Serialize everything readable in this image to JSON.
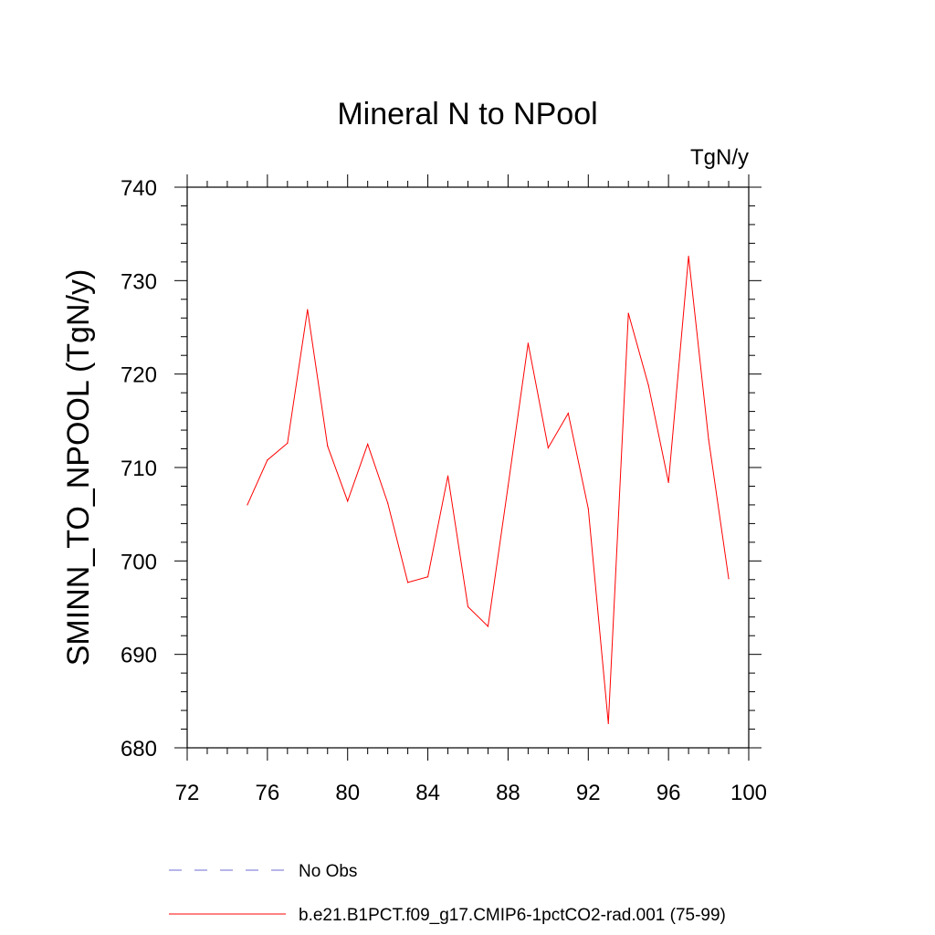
{
  "chart_data": {
    "type": "line",
    "title": "Mineral N to NPool",
    "units_label": "TgN/y",
    "ylabel": "SMINN_TO_NPOOL  (TgN/y)",
    "xlabel": "",
    "xlim": [
      72,
      100
    ],
    "ylim": [
      680,
      740
    ],
    "xticks": [
      "72",
      "76",
      "80",
      "84",
      "88",
      "92",
      "96",
      "100"
    ],
    "yticks": [
      "680",
      "690",
      "700",
      "710",
      "720",
      "730",
      "740"
    ],
    "grid": false,
    "legend_position": "bottom",
    "series": [
      {
        "name": "No Obs",
        "color": "#6b6bd6",
        "dash": "dashed",
        "x": [],
        "values": []
      },
      {
        "name": "b.e21.B1PCT.f09_g17.CMIP6-1pctCO2-rad.001 (75-99)",
        "color": "#ff0000",
        "dash": "solid",
        "x": [
          75,
          76,
          77,
          78,
          79,
          80,
          81,
          82,
          83,
          84,
          85,
          86,
          87,
          88,
          89,
          90,
          91,
          92,
          93,
          94,
          95,
          96,
          97,
          98,
          99
        ],
        "values": [
          706.0,
          710.8,
          712.6,
          726.9,
          712.3,
          706.4,
          712.5,
          706.2,
          697.7,
          698.3,
          709.1,
          695.1,
          693.0,
          708.0,
          723.3,
          712.1,
          715.8,
          705.6,
          682.6,
          726.5,
          718.8,
          708.4,
          732.6,
          713.0,
          698.1
        ]
      }
    ]
  }
}
